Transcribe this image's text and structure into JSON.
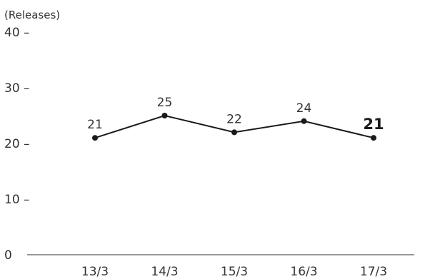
{
  "chart_data": {
    "type": "line",
    "unit_label": "(Releases)",
    "categories": [
      "13/3",
      "14/3",
      "15/3",
      "16/3",
      "17/3"
    ],
    "series": [
      {
        "values": [
          21,
          25,
          22,
          24,
          21
        ]
      }
    ],
    "data_labels": [
      "21",
      "25",
      "22",
      "24",
      "21"
    ],
    "highlight_last_label_bold": true,
    "y_ticks": [
      {
        "value": 0,
        "label": "0"
      },
      {
        "value": 10,
        "label": "10 –"
      },
      {
        "value": 20,
        "label": "20 –"
      },
      {
        "value": 30,
        "label": "30 –"
      },
      {
        "value": 40,
        "label": "40 –"
      }
    ],
    "ylim": [
      0,
      40
    ],
    "grid": false,
    "title": "",
    "xlabel": "",
    "ylabel": "",
    "colors": {
      "line": "#1a1a1a",
      "text": "#333333",
      "axis": "#333333"
    }
  }
}
